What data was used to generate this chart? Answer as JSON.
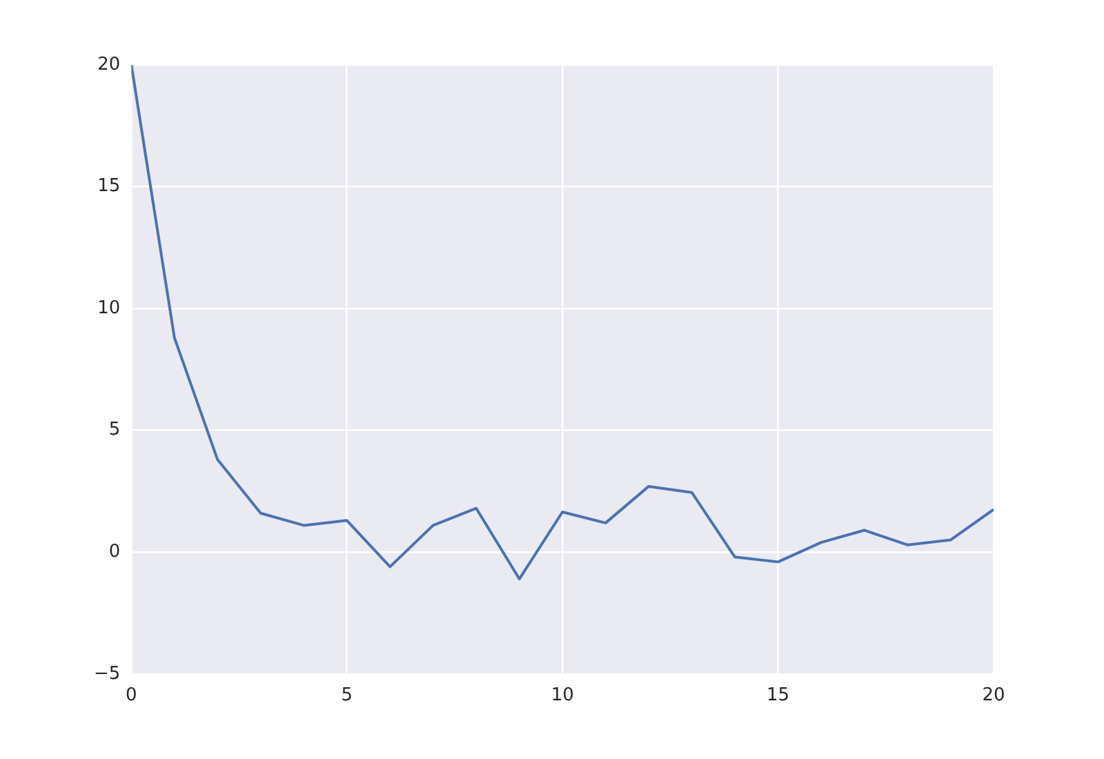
{
  "chart_data": {
    "type": "line",
    "x": [
      0,
      1,
      2,
      3,
      4,
      5,
      6,
      7,
      8,
      9,
      10,
      11,
      12,
      13,
      14,
      15,
      16,
      17,
      18,
      19,
      20
    ],
    "series": [
      {
        "color": "#4c72b0",
        "values": [
          20,
          8.8,
          3.8,
          1.6,
          1.1,
          1.3,
          -0.6,
          1.1,
          1.8,
          -1.1,
          1.65,
          1.2,
          2.7,
          2.45,
          -0.2,
          -0.4,
          0.4,
          0.9,
          0.3,
          0.5,
          1.75
        ]
      }
    ],
    "xlim": [
      0,
      20
    ],
    "xticks": [
      0,
      5,
      10,
      15,
      20
    ],
    "ylim": [
      -5,
      20
    ],
    "yticks": [
      {
        "value": -5,
        "label": "−5"
      },
      0,
      5,
      10,
      15,
      20
    ],
    "grid": true,
    "legend": false,
    "marker": "none",
    "line_style": "solid"
  }
}
